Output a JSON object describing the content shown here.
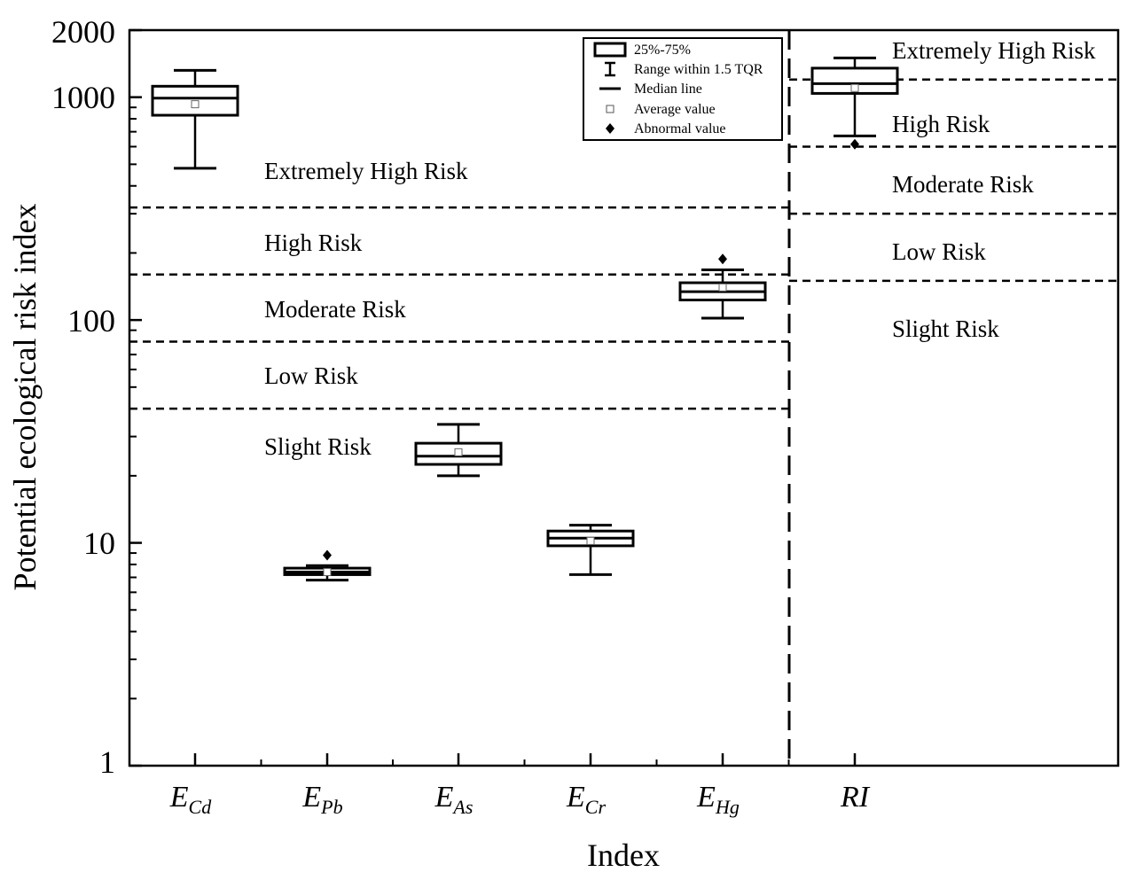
{
  "chart_data": {
    "type": "box",
    "xlabel": "Index",
    "ylabel": "Potential ecological risk index",
    "yscale": "log",
    "ylim": [
      1,
      2000
    ],
    "yticks": [
      {
        "value": 1,
        "label": "1"
      },
      {
        "value": 10,
        "label": "10"
      },
      {
        "value": 100,
        "label": "100"
      },
      {
        "value": 1000,
        "label": "1000"
      },
      {
        "value": 2000,
        "label": "2000"
      }
    ],
    "categories": [
      {
        "key": "ECd",
        "main": "E",
        "sub": "Cd"
      },
      {
        "key": "EPb",
        "main": "E",
        "sub": "Pb"
      },
      {
        "key": "EAs",
        "main": "E",
        "sub": "As"
      },
      {
        "key": "ECr",
        "main": "E",
        "sub": "Cr"
      },
      {
        "key": "EHg",
        "main": "E",
        "sub": "Hg"
      },
      {
        "key": "RI",
        "main": "RI",
        "sub": ""
      }
    ],
    "boxes": [
      {
        "key": "ECd",
        "whisker_low": 480,
        "q1": 830,
        "median": 990,
        "q3": 1120,
        "whisker_high": 1320,
        "mean": 930,
        "outliers": []
      },
      {
        "key": "EPb",
        "whisker_low": 6.8,
        "q1": 7.2,
        "median": 7.4,
        "q3": 7.7,
        "whisker_high": 7.9,
        "mean": 7.4,
        "outliers": [
          8.8
        ]
      },
      {
        "key": "EAs",
        "whisker_low": 20,
        "q1": 22.5,
        "median": 24.5,
        "q3": 28,
        "whisker_high": 34,
        "mean": 25.5,
        "outliers": []
      },
      {
        "key": "ECr",
        "whisker_low": 7.2,
        "q1": 9.7,
        "median": 10.5,
        "q3": 11.3,
        "whisker_high": 12,
        "mean": 10.2,
        "outliers": []
      },
      {
        "key": "EHg",
        "whisker_low": 102,
        "q1": 123,
        "median": 134,
        "q3": 147,
        "whisker_high": 168,
        "mean": 140,
        "outliers": [
          188
        ]
      },
      {
        "key": "RI",
        "whisker_low": 670,
        "q1": 1040,
        "median": 1150,
        "q3": 1350,
        "whisker_high": 1500,
        "mean": 1100,
        "outliers": [
          615
        ]
      }
    ],
    "thresholds_left": [
      {
        "value": 40,
        "label": "Low Risk / Slight Risk boundary"
      },
      {
        "value": 80,
        "label": "Moderate Risk / Low Risk boundary"
      },
      {
        "value": 160,
        "label": "High Risk / Moderate Risk boundary"
      },
      {
        "value": 320,
        "label": "Extremely High Risk / High Risk boundary"
      }
    ],
    "thresholds_right": [
      150,
      300,
      600,
      1200
    ],
    "risk_labels_left": [
      "Extremely High Risk",
      "High Risk",
      "Moderate Risk",
      "Low Risk",
      "Slight Risk"
    ],
    "risk_labels_right": [
      "Extremely High Risk",
      "High Risk",
      "Moderate Risk",
      "Low Risk",
      "Slight Risk"
    ],
    "legend": {
      "position": "top-center",
      "entries": [
        {
          "symbol": "box",
          "label": "25%-75%"
        },
        {
          "symbol": "whisker",
          "label": "Range within 1.5 TQR"
        },
        {
          "symbol": "line",
          "label": "Median line"
        },
        {
          "symbol": "open-square",
          "label": "Average value"
        },
        {
          "symbol": "diamond",
          "label": "Abnormal value"
        }
      ]
    }
  }
}
